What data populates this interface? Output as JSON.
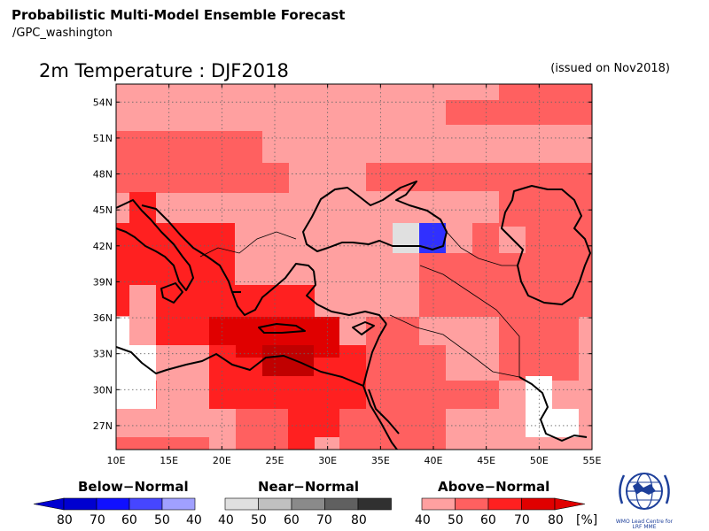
{
  "header": {
    "title": "Probabilistic Multi-Model Ensemble Forecast",
    "source": "/GPC_washington"
  },
  "map": {
    "title": "2m Temperature : DJF2018",
    "issued": "(issued on Nov2018)",
    "lon_range": [
      10,
      55
    ],
    "lat_range": [
      25,
      55.5
    ],
    "lat_ticks": [
      "54N",
      "51N",
      "48N",
      "45N",
      "42N",
      "39N",
      "36N",
      "33N",
      "30N",
      "27N"
    ],
    "lat_tick_values": [
      54,
      51,
      48,
      45,
      42,
      39,
      36,
      33,
      30,
      27
    ],
    "lon_ticks": [
      "10E",
      "15E",
      "20E",
      "25E",
      "30E",
      "35E",
      "40E",
      "45E",
      "50E",
      "55E"
    ],
    "lon_tick_values": [
      10,
      15,
      20,
      25,
      30,
      35,
      40,
      45,
      50,
      55
    ],
    "grid": "dotted",
    "colors": {
      "above_40": "#ffa0a0",
      "above_50": "#ff6060",
      "above_60": "#ff2020",
      "above_70": "#e00000",
      "above_80": "#c00000",
      "near_40": "#e0e0e0",
      "below_40": "#3030ff",
      "none": "#ffffff"
    }
  },
  "legend": {
    "below": {
      "title": "Below−Normal",
      "labels": [
        "80",
        "70",
        "60",
        "50",
        "40"
      ],
      "colors": [
        "#0000a0",
        "#0000d0",
        "#1010ff",
        "#4646ff",
        "#a0a0ff"
      ]
    },
    "near": {
      "title": "Near−Normal",
      "labels": [
        "40",
        "50",
        "60",
        "70",
        "80"
      ],
      "colors": [
        "#e0e0e0",
        "#c0c0c0",
        "#8a8a8a",
        "#606060",
        "#303030"
      ]
    },
    "above": {
      "title": "Above−Normal",
      "labels": [
        "40",
        "50",
        "60",
        "70",
        "80"
      ],
      "colors": [
        "#ffa0a0",
        "#ff6060",
        "#ff2020",
        "#e00000",
        "#a00000"
      ],
      "unit": "[%]"
    }
  },
  "logo": {
    "icon": "wmo-globe-icon",
    "text_line1": "WMO Lead Centre for",
    "text_line2": "LRF MME"
  }
}
